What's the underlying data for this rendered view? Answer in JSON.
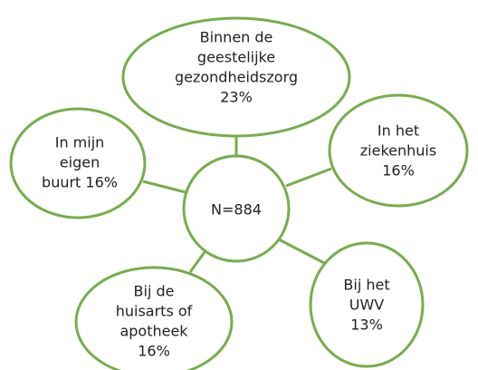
{
  "center": {
    "label": "N=884"
  },
  "nodes": [
    {
      "lines": [
        "Binnen de",
        "geestelijke",
        "gezondheidszorg",
        "23%"
      ]
    },
    {
      "lines": [
        "In mijn",
        "eigen",
        "buurt 16%"
      ]
    },
    {
      "lines": [
        "In het",
        "ziekenhuis",
        "16%"
      ]
    },
    {
      "lines": [
        "Bij de",
        "huisarts of",
        "apotheek",
        "16%"
      ]
    },
    {
      "lines": [
        "Bij het",
        "UWV",
        "13%"
      ]
    }
  ]
}
